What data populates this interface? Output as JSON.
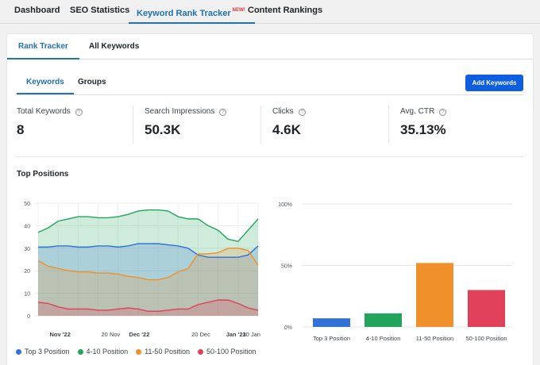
{
  "topnav": {
    "tabs": [
      {
        "label": "Dashboard"
      },
      {
        "label": "SEO Statistics"
      },
      {
        "label": "Keyword Rank Tracker",
        "badge": "NEW!"
      },
      {
        "label": "Content Rankings"
      }
    ]
  },
  "subtabs": [
    {
      "label": "Rank Tracker"
    },
    {
      "label": "All Keywords"
    }
  ],
  "keyword_tabs": [
    {
      "label": "Keywords"
    },
    {
      "label": "Groups"
    }
  ],
  "add_button": {
    "label": "Add Keywords"
  },
  "stats": [
    {
      "label": "Total Keywords",
      "value": "8"
    },
    {
      "label": "Search Impressions",
      "value": "50.3K"
    },
    {
      "label": "Clicks",
      "value": "4.6K"
    },
    {
      "label": "Avg. CTR",
      "value": "35.13%"
    }
  ],
  "section_title": "Top Positions",
  "legend": [
    {
      "label": "Top 3 Position",
      "color": "#3271d6"
    },
    {
      "label": "4-10 Position",
      "color": "#22a45d"
    },
    {
      "label": "11-50 Position",
      "color": "#f0902b"
    },
    {
      "label": "50-100 Position",
      "color": "#e0405a"
    }
  ],
  "chart_data": [
    {
      "type": "area",
      "title": "Top Positions",
      "x_ticks": [
        "Nov '22",
        "20 Nov",
        "Dec '22",
        "20 Dec",
        "Jan '23",
        "10 Jan"
      ],
      "y_ticks": [
        "0",
        "10",
        "20",
        "30",
        "40",
        "50"
      ],
      "ylim": [
        0,
        50
      ],
      "series": [
        {
          "name": "Top 3 Position",
          "color": "#3271d6",
          "values": [
            30.5,
            30.5,
            31,
            31,
            30.5,
            30.5,
            31,
            31,
            30.5,
            31,
            32,
            32,
            32,
            31.5,
            31,
            30,
            27,
            26,
            26,
            26,
            26,
            27,
            31
          ]
        },
        {
          "name": "4-10 Position",
          "color": "#22a45d",
          "values": [
            37,
            39,
            42,
            43,
            44,
            44,
            43.5,
            43.5,
            44,
            45,
            46.5,
            47,
            47,
            46.5,
            44,
            43,
            43,
            40,
            38,
            34,
            33,
            38,
            43
          ]
        },
        {
          "name": "11-50 Position",
          "color": "#f0902b",
          "values": [
            24.5,
            22,
            21,
            20,
            19.5,
            19.5,
            19,
            19,
            18.5,
            17.5,
            17,
            16,
            16,
            17,
            19.5,
            21,
            27.5,
            27.5,
            28,
            30,
            30,
            29,
            22.5
          ]
        },
        {
          "name": "50-100 Position",
          "color": "#e0405a",
          "values": [
            6,
            5.5,
            4,
            3,
            3,
            3,
            2.5,
            2.5,
            3,
            3.5,
            3,
            2,
            2,
            2.5,
            3,
            3,
            5,
            6,
            7,
            7,
            5.5,
            3.5,
            2.5
          ]
        }
      ]
    },
    {
      "type": "bar",
      "categories": [
        "Top 3 Position",
        "4-10 Position",
        "11-50 Position",
        "50-100 Position"
      ],
      "values": [
        7,
        11,
        52,
        30
      ],
      "y_ticks": [
        "0%",
        "50%",
        "100%"
      ],
      "ylim": [
        0,
        100
      ]
    }
  ]
}
